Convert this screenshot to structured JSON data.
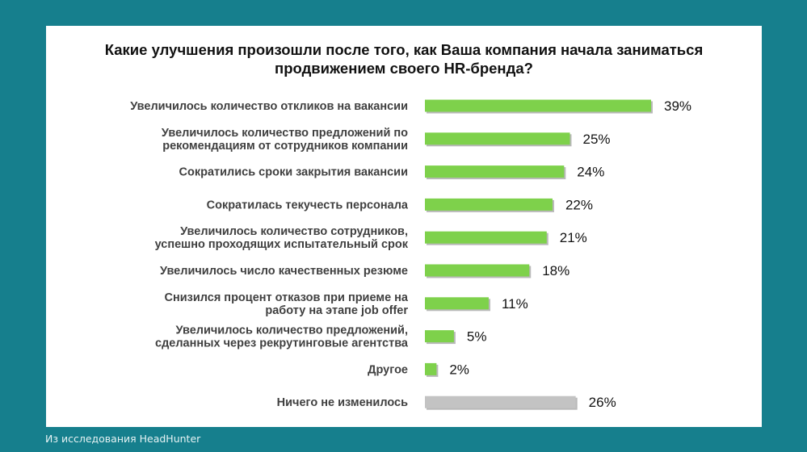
{
  "chart_data": {
    "type": "bar",
    "orientation": "horizontal",
    "title": "Какие улучшения произошли после того, как Ваша компания начала заниматься продвижением своего HR-бренда?",
    "title_lines": [
      "Какие улучшения произошли после того, как Ваша компания начала заниматься",
      "продвижением своего HR-бренда?"
    ],
    "unit": "%",
    "categories": [
      [
        "Увеличилось количество откликов на вакансии"
      ],
      [
        "Увеличилось количество предложений по",
        "рекомендациям от сотрудников компании"
      ],
      [
        "Сократились сроки закрытия вакансии"
      ],
      [
        "Сократилась текучесть персонала"
      ],
      [
        "Увеличилось количество сотрудников,",
        "успешно проходящих испытательный срок"
      ],
      [
        "Увеличилось число качественных резюме"
      ],
      [
        "Снизился процент отказов при приеме на",
        "работу на этапе job offer"
      ],
      [
        "Увеличилось количество предложений,",
        "сделанных через рекрутинговые агентства"
      ],
      [
        "Другое"
      ],
      [
        "Ничего не изменилось"
      ]
    ],
    "values": [
      39,
      25,
      24,
      22,
      21,
      18,
      11,
      5,
      2,
      26
    ],
    "value_labels": [
      "39%",
      "25%",
      "24%",
      "22%",
      "21%",
      "18%",
      "11%",
      "5%",
      "2%",
      "26%"
    ],
    "bar_colors": [
      "#7ed14b",
      "#7ed14b",
      "#7ed14b",
      "#7ed14b",
      "#7ed14b",
      "#7ed14b",
      "#7ed14b",
      "#7ed14b",
      "#7ed14b",
      "#c3c3c3"
    ],
    "xlim": [
      0,
      39
    ],
    "grid": false,
    "legend": "none"
  },
  "footer": {
    "source": "Из исследования HeadHunter"
  },
  "colors": {
    "background": "#167f8d",
    "card": "#ffffff",
    "bar_green": "#7ed14b",
    "bar_gray": "#c3c3c3",
    "bar_shadow": "#b9b9b9"
  }
}
